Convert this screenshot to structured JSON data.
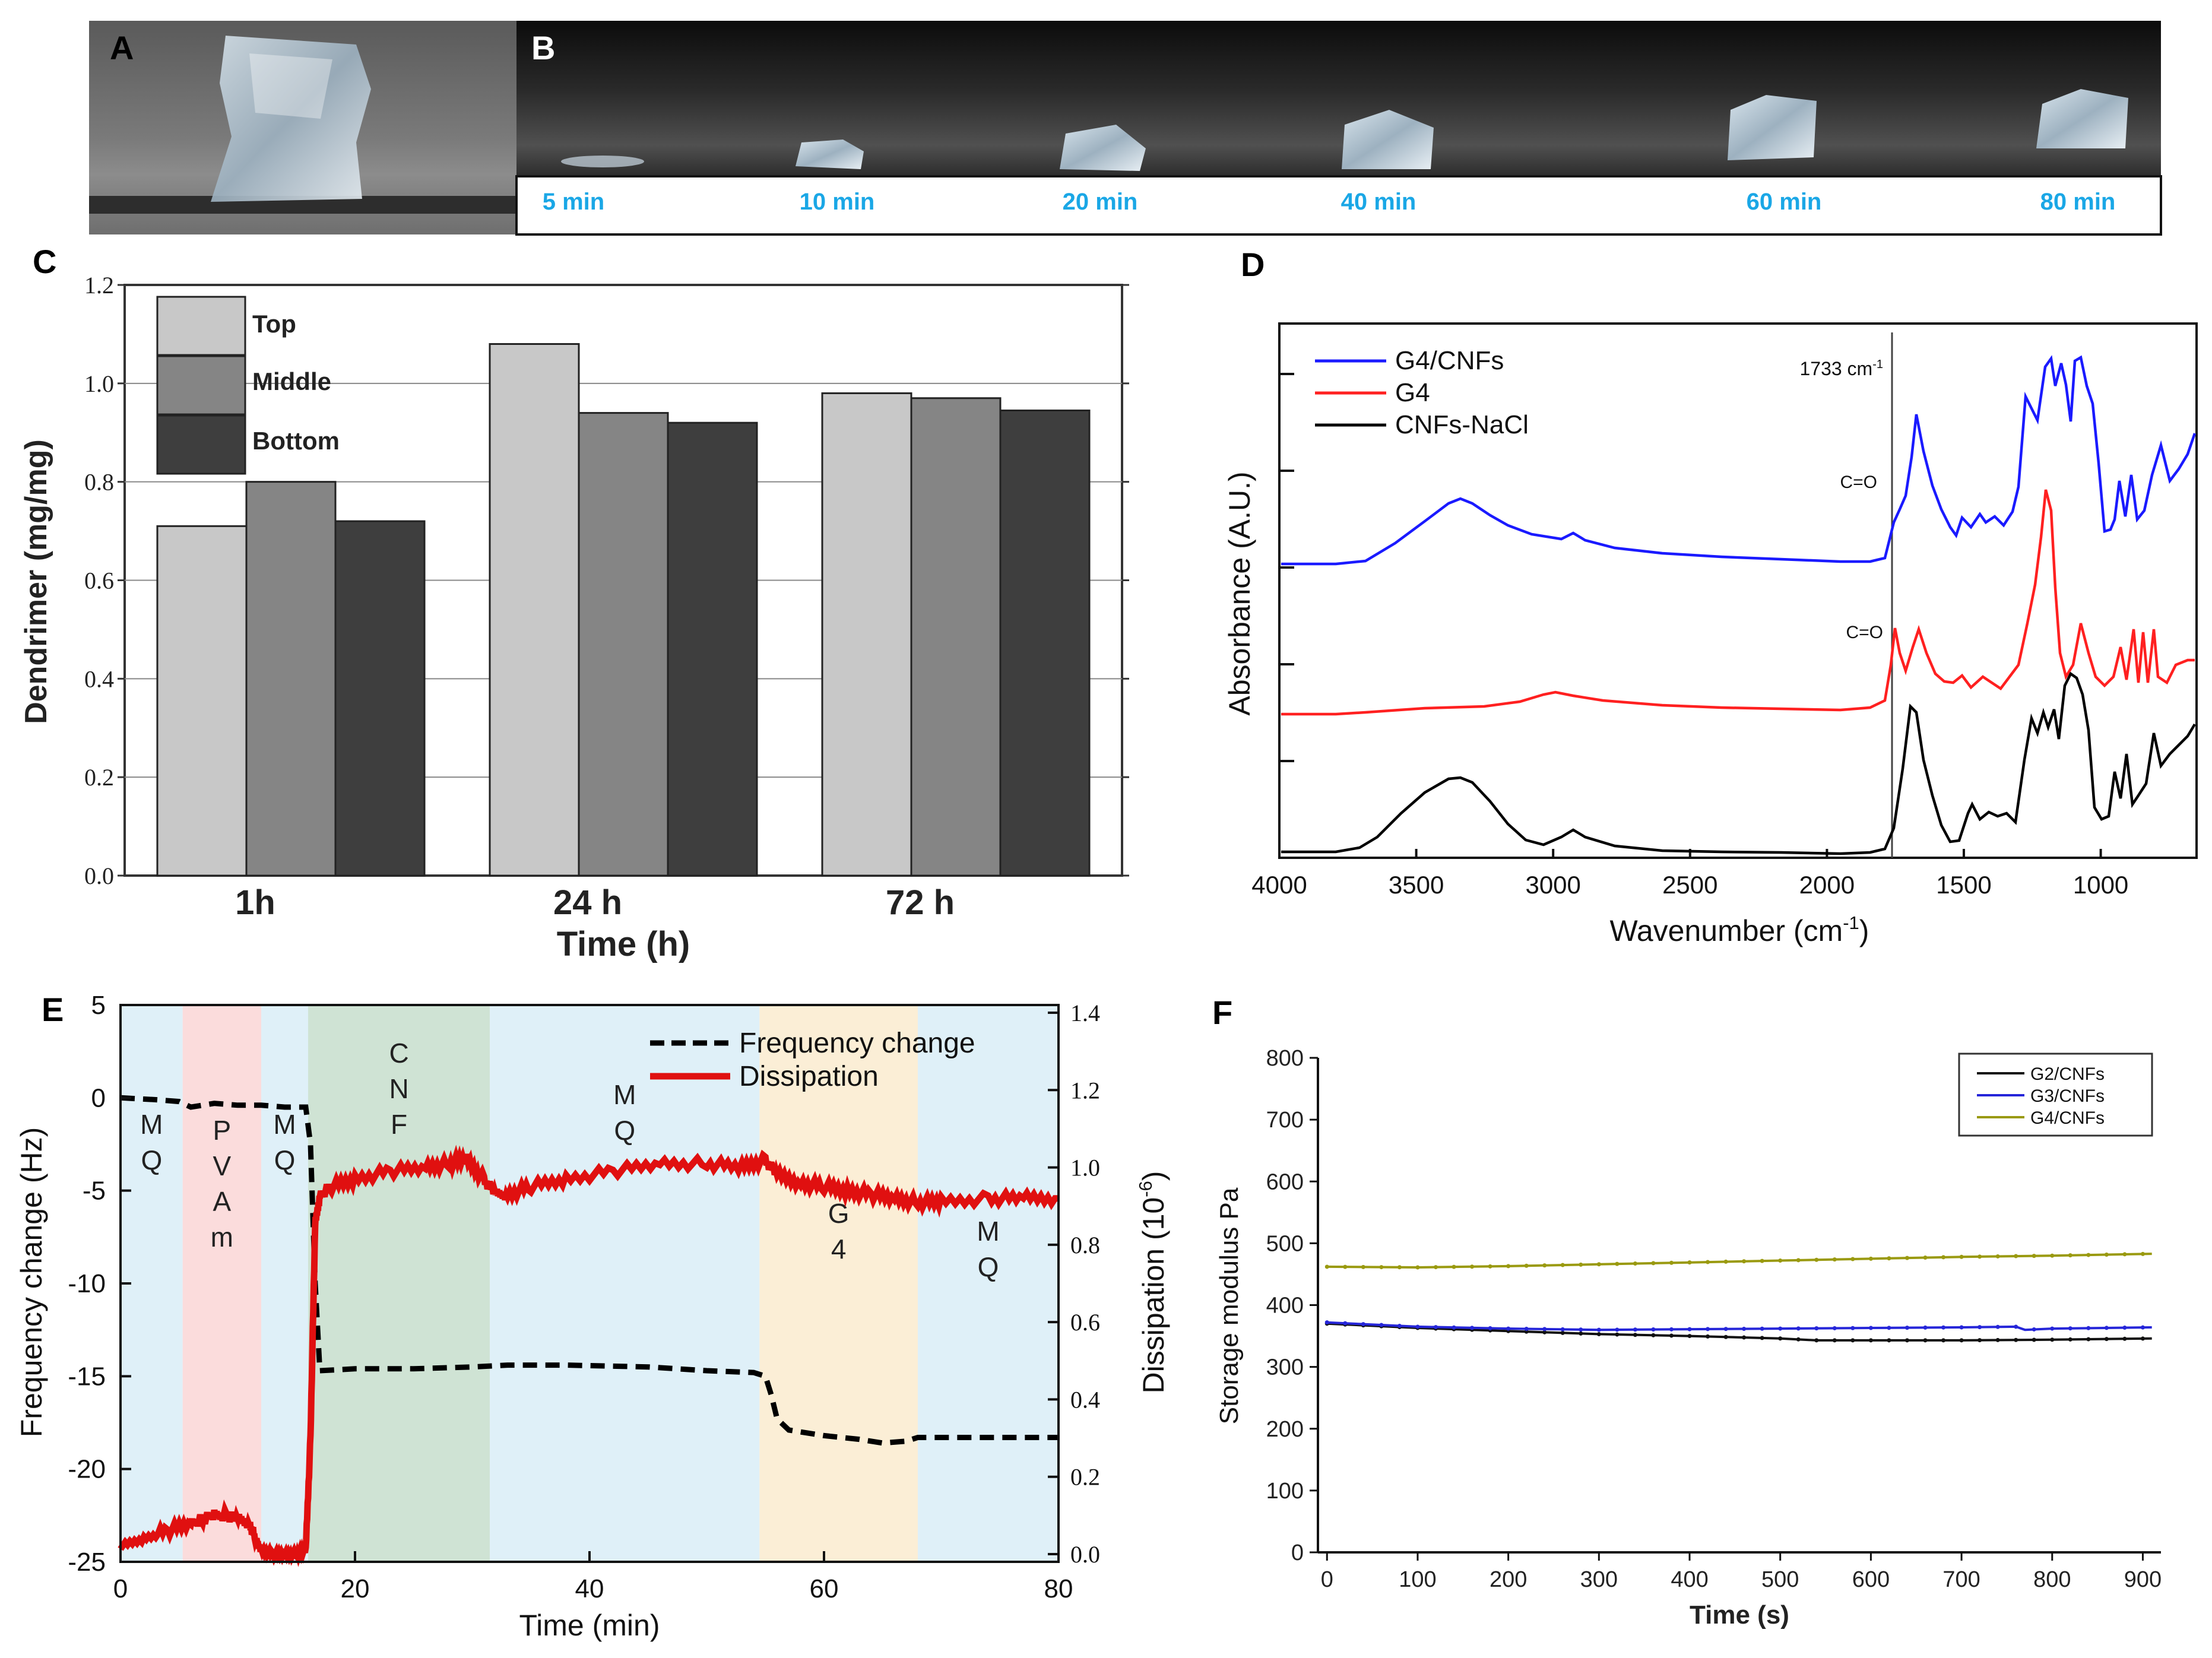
{
  "figure": {
    "panel_labels": [
      "A",
      "B",
      "C",
      "D",
      "E",
      "F"
    ]
  },
  "panel_b": {
    "time_labels": [
      "5 min",
      "10 min",
      "20 min",
      "40 min",
      "60 min",
      "80 min"
    ],
    "label_color": "#1aa7e6"
  },
  "chart_data": [
    {
      "panel": "C",
      "type": "bar",
      "title": "",
      "xlabel": "Time (h)",
      "ylabel": "Dendrimer (mg/mg)",
      "categories": [
        "1h",
        "24 h",
        "72 h"
      ],
      "ylim": [
        0,
        1.2
      ],
      "yticks": [
        "0.0",
        "0.2",
        "0.4",
        "0.6",
        "0.8",
        "1.0",
        "1.2"
      ],
      "series": [
        {
          "name": "Top",
          "color": "#c8c8c8",
          "values": [
            0.71,
            1.08,
            0.98
          ]
        },
        {
          "name": "Middle",
          "color": "#858585",
          "values": [
            0.8,
            0.94,
            0.97
          ]
        },
        {
          "name": "Bottom",
          "color": "#3e3e3e",
          "values": [
            0.72,
            0.92,
            0.945
          ]
        }
      ]
    },
    {
      "panel": "D",
      "type": "line",
      "xlabel": "Wavenumber (cm-1)",
      "ylabel": "Absorbance (A.U.)",
      "xlim": [
        4000,
        650
      ],
      "xticks": [
        "4000",
        "3500",
        "3000",
        "2500",
        "2000",
        "1500",
        "1000"
      ],
      "annotations": [
        "1733 cm-1",
        "C=O",
        "C=O"
      ],
      "series": [
        {
          "name": "G4/CNFs",
          "color": "#1a1aff"
        },
        {
          "name": "G4",
          "color": "#ff2020"
        },
        {
          "name": "CNFs-NaCl",
          "color": "#000000"
        }
      ]
    },
    {
      "panel": "E",
      "type": "line",
      "xlabel": "Time (min)",
      "ylabel": "Frequency change (Hz)",
      "ylabel_right": "Dissipation (10-6)",
      "xlim": [
        0,
        80
      ],
      "ylim": [
        -25,
        5
      ],
      "ylim_right": [
        -0.02,
        1.42
      ],
      "xticks": [
        "0",
        "20",
        "40",
        "60",
        "80"
      ],
      "yticks": [
        "5",
        "0",
        "-5",
        "-10",
        "-15",
        "-20",
        "-25"
      ],
      "yticks_right": [
        "1.4",
        "1.2",
        "1.0",
        "0.8",
        "0.6",
        "0.4",
        "0.2",
        "0.0"
      ],
      "regions": [
        {
          "label": "M Q",
          "from": 0,
          "to": 5.3,
          "color": "#dff0f8"
        },
        {
          "label": "P V A m",
          "from": 5.3,
          "to": 12,
          "color": "#fbdcdc"
        },
        {
          "label": "M Q",
          "from": 12,
          "to": 16,
          "color": "#dff0f8"
        },
        {
          "label": "C N F",
          "from": 16,
          "to": 31.5,
          "color": "#cfe3d4"
        },
        {
          "label": "M Q",
          "from": 31.5,
          "to": 54.5,
          "color": "#dff0f8"
        },
        {
          "label": "G 4",
          "from": 54.5,
          "to": 68,
          "color": "#fbeed6"
        },
        {
          "label": "M Q",
          "from": 68,
          "to": 80,
          "color": "#dff0f8"
        }
      ],
      "series": [
        {
          "name": "Frequency change",
          "style": "dashed",
          "color": "#000000",
          "x": [
            0,
            3,
            5,
            6,
            8,
            10,
            12,
            14,
            15.8,
            16.2,
            16.6,
            17,
            20,
            25,
            30,
            33,
            38,
            45,
            50,
            54,
            55,
            55.5,
            56,
            57,
            60,
            63,
            65,
            67,
            68,
            70,
            75,
            80
          ],
          "y": [
            0,
            -0.1,
            -0.2,
            -0.5,
            -0.3,
            -0.4,
            -0.4,
            -0.5,
            -0.5,
            -2.5,
            -10,
            -14.7,
            -14.6,
            -14.6,
            -14.5,
            -14.4,
            -14.4,
            -14.5,
            -14.7,
            -14.8,
            -15,
            -16,
            -17.3,
            -17.9,
            -18.2,
            -18.4,
            -18.6,
            -18.5,
            -18.3,
            -18.3,
            -18.3,
            -18.3
          ]
        },
        {
          "name": "Dissipation",
          "style": "solid",
          "color": "#e01010",
          "axis": "right",
          "x": [
            0,
            2,
            4,
            6,
            7,
            8,
            9,
            10,
            11,
            11.5,
            12,
            13,
            14,
            15,
            15.8,
            16.2,
            16.6,
            17,
            18,
            20,
            23,
            26,
            28,
            29.5,
            31,
            32,
            33,
            35,
            38,
            42,
            46,
            50,
            53,
            55,
            56,
            58,
            60,
            62,
            64,
            66,
            68,
            70,
            74,
            77,
            80
          ],
          "y": [
            0.02,
            0.04,
            0.06,
            0.08,
            0.09,
            0.1,
            0.1,
            0.09,
            0.08,
            0.04,
            0.01,
            0.0,
            0.0,
            0.0,
            0.01,
            0.3,
            0.85,
            0.93,
            0.95,
            0.97,
            0.99,
            1.0,
            1.01,
            1.02,
            0.97,
            0.93,
            0.93,
            0.95,
            0.97,
            0.99,
            1.01,
            1.01,
            1.0,
            1.02,
            0.98,
            0.96,
            0.95,
            0.94,
            0.93,
            0.92,
            0.91,
            0.91,
            0.92,
            0.92,
            0.92
          ]
        }
      ]
    },
    {
      "panel": "F",
      "type": "line",
      "xlabel": "Time (s)",
      "ylabel": "Storage modulus Pa",
      "xlim": [
        -10,
        920
      ],
      "ylim": [
        0,
        800
      ],
      "xticks": [
        "0",
        "100",
        "200",
        "300",
        "400",
        "500",
        "600",
        "700",
        "800",
        "900"
      ],
      "yticks": [
        "0",
        "100",
        "200",
        "300",
        "400",
        "500",
        "600",
        "700",
        "800"
      ],
      "series": [
        {
          "name": "G2/CNFs",
          "color": "#111111",
          "x": [
            0,
            100,
            200,
            300,
            400,
            500,
            540,
            600,
            700,
            800,
            910
          ],
          "y": [
            370,
            363,
            358,
            353,
            350,
            346,
            343,
            343,
            343,
            344,
            346
          ]
        },
        {
          "name": "G3/CNFs",
          "color": "#2626d9",
          "x": [
            0,
            100,
            200,
            300,
            400,
            500,
            600,
            700,
            760,
            770,
            800,
            910
          ],
          "y": [
            372,
            365,
            362,
            360,
            361,
            362,
            363,
            364,
            365,
            360,
            362,
            364
          ]
        },
        {
          "name": "G4/CNFs",
          "color": "#9a9a10",
          "x": [
            0,
            100,
            200,
            300,
            400,
            500,
            600,
            700,
            800,
            910
          ],
          "y": [
            462,
            461,
            463,
            466,
            469,
            472,
            475,
            478,
            480,
            483
          ]
        }
      ]
    }
  ]
}
